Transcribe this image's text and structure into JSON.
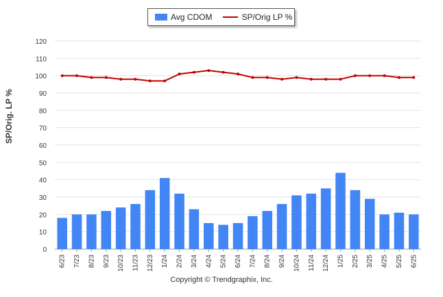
{
  "chart_data": {
    "type": "bar",
    "categories": [
      "6/23",
      "7/23",
      "8/23",
      "9/23",
      "10/23",
      "11/23",
      "12/23",
      "1/24",
      "2/24",
      "3/24",
      "4/24",
      "5/24",
      "6/24",
      "7/24",
      "8/24",
      "9/24",
      "10/24",
      "11/24",
      "12/24",
      "1/25",
      "2/25",
      "3/25",
      "4/25",
      "5/25",
      "6/25"
    ],
    "series": [
      {
        "name": "Avg CDOM",
        "type": "bar",
        "color": "#4285f4",
        "values": [
          18,
          20,
          20,
          22,
          24,
          26,
          34,
          41,
          32,
          23,
          15,
          14,
          15,
          19,
          22,
          26,
          31,
          32,
          35,
          44,
          34,
          29,
          20,
          21,
          20
        ]
      },
      {
        "name": "SP/Orig LP %",
        "type": "line",
        "color": "#c00000",
        "values": [
          100,
          100,
          99,
          99,
          98,
          98,
          97,
          97,
          101,
          102,
          103,
          102,
          101,
          99,
          99,
          98,
          99,
          98,
          98,
          98,
          100,
          100,
          100,
          99,
          99
        ]
      }
    ],
    "ylabel": "SP/Orig. LP %",
    "yticks": [
      0,
      10,
      20,
      30,
      40,
      50,
      60,
      70,
      80,
      90,
      100,
      110,
      120
    ],
    "ylim": [
      0,
      120
    ],
    "grid": true,
    "legend_position": "top-center"
  },
  "legend": {
    "bar_label": "Avg CDOM",
    "line_label": "SP/Orig LP %"
  },
  "footer": {
    "copyright": "Copyright © Trendgraphix, Inc."
  }
}
